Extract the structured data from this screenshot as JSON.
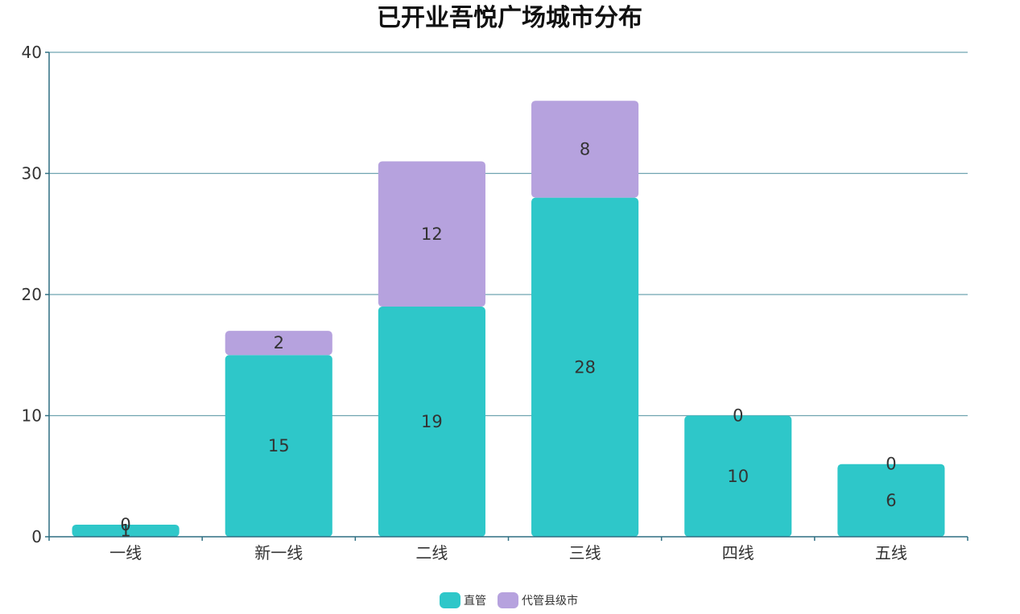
{
  "chart_data": {
    "type": "bar",
    "stacked": true,
    "title": "已开业吾悦广场城市分布",
    "xlabel": "",
    "ylabel": "",
    "categories": [
      "一线",
      "新一线",
      "二线",
      "三线",
      "四线",
      "五线"
    ],
    "series": [
      {
        "name": "直管",
        "color": "#2ec7c9",
        "values": [
          1,
          15,
          19,
          28,
          10,
          6
        ]
      },
      {
        "name": "代管县级市",
        "color": "#b6a2de",
        "values": [
          0,
          2,
          12,
          8,
          0,
          0
        ]
      }
    ],
    "ylim": [
      0,
      40
    ],
    "yticks": [
      0,
      10,
      20,
      30,
      40
    ],
    "grid": true,
    "legend_position": "bottom-center"
  }
}
